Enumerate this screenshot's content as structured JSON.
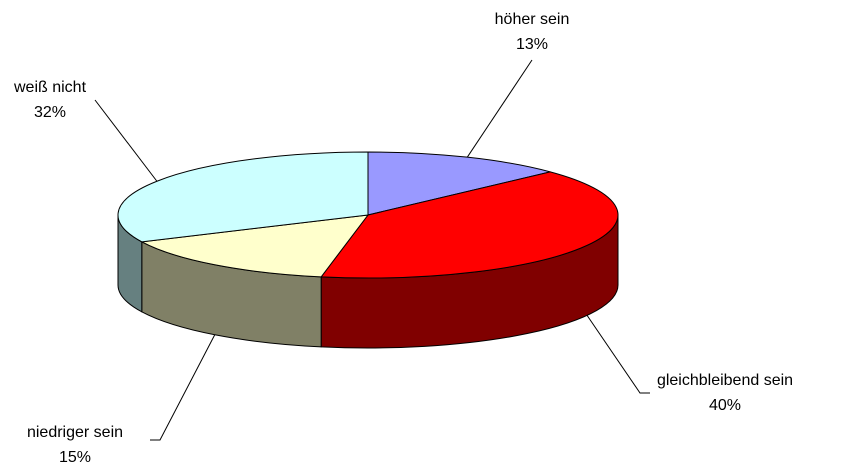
{
  "chart_data": {
    "type": "pie3d",
    "categories": [
      "höher sein",
      "gleichbleibend sein",
      "niedriger sein",
      "weiß nicht"
    ],
    "values": [
      13,
      40,
      15,
      32
    ],
    "value_labels": [
      "13%",
      "40%",
      "15%",
      "32%"
    ],
    "colors": [
      "#9999ff",
      "#ff0000",
      "#ffffcc",
      "#ccffff"
    ]
  }
}
